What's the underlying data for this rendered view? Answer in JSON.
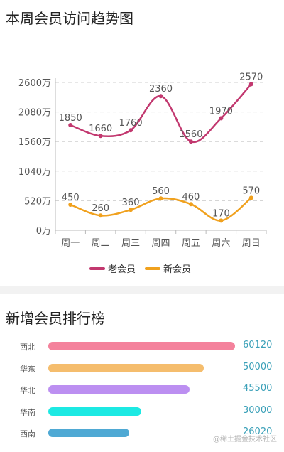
{
  "header": {
    "title": "本周会员访问趋势图"
  },
  "chart_data": [
    {
      "type": "line",
      "title": "本周会员访问趋势图",
      "categories": [
        "周一",
        "周二",
        "周三",
        "周四",
        "周五",
        "周六",
        "周日"
      ],
      "series": [
        {
          "name": "老会员",
          "values": [
            1850,
            1660,
            1760,
            2360,
            1560,
            1970,
            2570
          ],
          "color": "#c2386f"
        },
        {
          "name": "新会员",
          "values": [
            450,
            260,
            360,
            560,
            460,
            170,
            570
          ],
          "color": "#f0a11e"
        }
      ],
      "y_ticks": [
        "0万",
        "520万",
        "1040万",
        "1560万",
        "2080万",
        "2600万"
      ],
      "ylim": [
        0,
        2600
      ],
      "smooth": true,
      "grid": "dashed-horizontal",
      "legend": "bottom-center"
    },
    {
      "type": "bar",
      "orientation": "horizontal",
      "title": "新增会员排行榜",
      "categories": [
        "西北",
        "华东",
        "华北",
        "华南",
        "西南"
      ],
      "values": [
        60120,
        50000,
        45500,
        30000,
        26020
      ],
      "value_labels": [
        "60120",
        "50000",
        "45500",
        "30000",
        "26020"
      ],
      "colors": [
        "#f4829c",
        "#f5bd6d",
        "#bc8ff1",
        "#1de9e3",
        "#4fa9d4"
      ]
    }
  ],
  "watermark": "@稀土掘金技术社区"
}
